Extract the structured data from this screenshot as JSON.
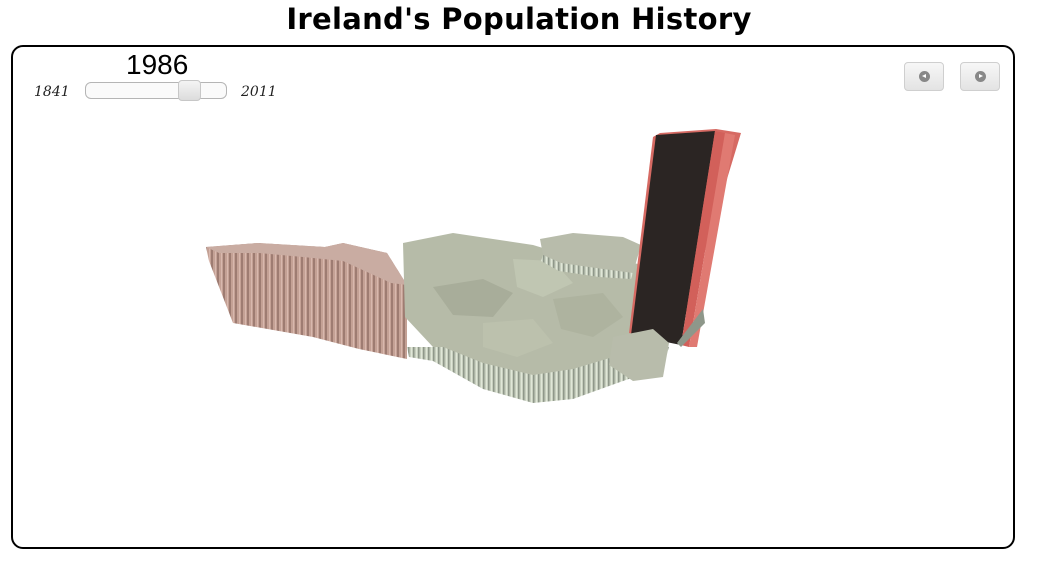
{
  "header": {
    "title": "Ireland's Population History"
  },
  "timeline": {
    "current_year": "1986",
    "min_year": "1841",
    "max_year": "2011",
    "slider_value": 1986
  },
  "controls": {
    "prev_icon": "previous-circle-icon",
    "next_icon": "next-circle-icon"
  },
  "colors": {
    "land": "#b8bcab",
    "land_side": "#cfd6c4",
    "high_pop_bar": "#2b2523",
    "high_pop_edge": "#d66a63",
    "west_region": "#c9a59a"
  }
}
